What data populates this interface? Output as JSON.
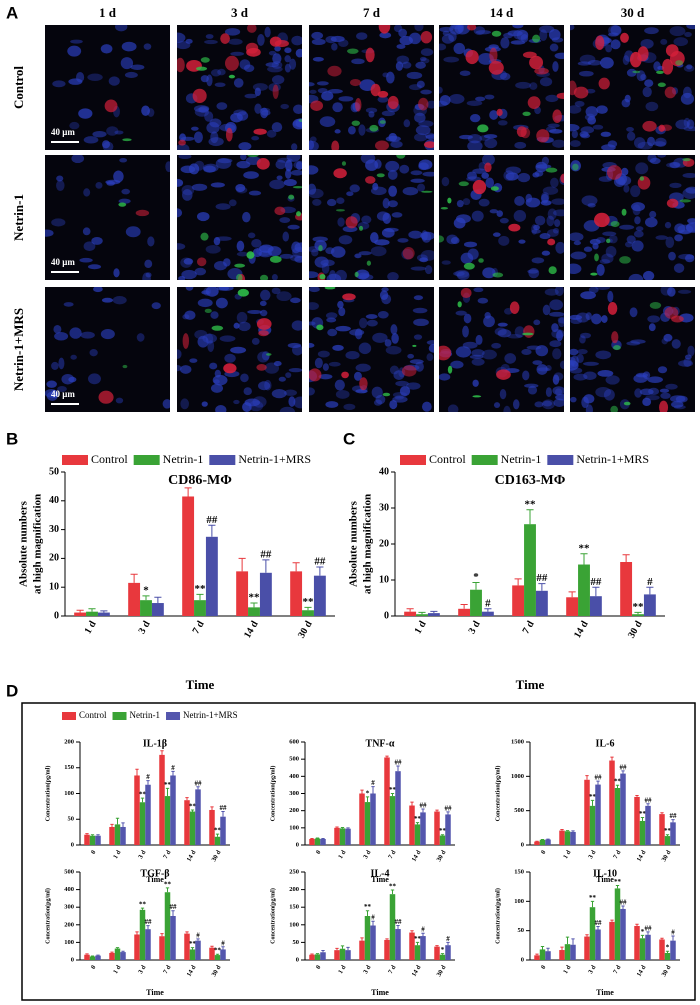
{
  "panel_a": {
    "label": "A",
    "columns": [
      "1 d",
      "3 d",
      "7 d",
      "14 d",
      "30 d"
    ],
    "rows": [
      "Control",
      "Netrin-1",
      "Netrin-1+MRS"
    ],
    "scale_bar": "40 μm"
  },
  "panel_d": "D",
  "chart_data": [
    {
      "type": "bar",
      "panel": "B",
      "title": "CD86-MΦ",
      "ylabel": [
        "Absolute numbers",
        "at high magnification"
      ],
      "xlabel": "Time",
      "categories": [
        "1 d",
        "3 d",
        "7 d",
        "14 d",
        "30 d"
      ],
      "ylim": [
        0,
        50
      ],
      "yticks": [
        0,
        10,
        20,
        30,
        40,
        50
      ],
      "series": [
        {
          "name": "Control",
          "color": "#e8383d",
          "values": [
            1.2,
            11.5,
            41.5,
            15.5,
            15.5
          ],
          "errors": [
            0.8,
            3,
            3,
            4.5,
            3
          ],
          "annotations": [
            null,
            null,
            null,
            null,
            null
          ]
        },
        {
          "name": "Netrin-1",
          "color": "#3aa335",
          "values": [
            1.5,
            5.5,
            5.5,
            3,
            2
          ],
          "errors": [
            1,
            1.5,
            2,
            1.5,
            1
          ],
          "annotations": [
            null,
            "*",
            "**",
            "**",
            "**"
          ]
        },
        {
          "name": "Netrin-1+MRS",
          "color": "#4a4fa8",
          "values": [
            1.2,
            4.5,
            27.5,
            15,
            14
          ],
          "errors": [
            0.6,
            2,
            4,
            4.5,
            3
          ],
          "annotations": [
            null,
            null,
            "##",
            "##",
            "##"
          ]
        }
      ]
    },
    {
      "type": "bar",
      "panel": "C",
      "title": "CD163-MΦ",
      "ylabel": [
        "Absolute numbers",
        "at high magnification"
      ],
      "xlabel": "Time",
      "categories": [
        "1 d",
        "3 d",
        "7 d",
        "14 d",
        "30 d"
      ],
      "ylim": [
        0,
        40
      ],
      "yticks": [
        0,
        10,
        20,
        30,
        40
      ],
      "series": [
        {
          "name": "Control",
          "color": "#e8383d",
          "values": [
            1.2,
            2,
            8.5,
            5.2,
            15
          ],
          "errors": [
            0.8,
            1.2,
            1.8,
            1.5,
            2
          ],
          "annotations": [
            null,
            null,
            null,
            null,
            null
          ]
        },
        {
          "name": "Netrin-1",
          "color": "#3aa335",
          "values": [
            0.5,
            7.3,
            25.5,
            14.3,
            0.5
          ],
          "errors": [
            0.5,
            2,
            4,
            3,
            0.5
          ],
          "annotations": [
            null,
            "*",
            "**",
            "**",
            "**"
          ]
        },
        {
          "name": "Netrin-1+MRS",
          "color": "#4a4fa8",
          "values": [
            0.8,
            1.2,
            7,
            5.5,
            6
          ],
          "errors": [
            0.5,
            0.8,
            2,
            2.5,
            2
          ],
          "annotations": [
            null,
            "#",
            "##",
            "##",
            "#"
          ]
        }
      ]
    },
    {
      "type": "bar",
      "title": "IL-1β",
      "ylabel": "Concentration(pg/ml)",
      "xlabel": "Time",
      "categories": [
        "0",
        "1 d",
        "3 d",
        "7 d",
        "14 d",
        "30 d"
      ],
      "ylim": [
        0,
        200
      ],
      "yticks": [
        0,
        50,
        100,
        150,
        200
      ],
      "series": [
        {
          "name": "Control",
          "color": "#e8383d",
          "values": [
            20,
            35,
            135,
            175,
            87,
            68
          ],
          "errors": [
            2,
            5,
            12,
            8,
            5,
            6
          ],
          "annotations": [
            null,
            null,
            null,
            null,
            null,
            null
          ]
        },
        {
          "name": "Netrin-1",
          "color": "#3aa335",
          "values": [
            18,
            40,
            83,
            95,
            65,
            16
          ],
          "errors": [
            2,
            12,
            8,
            15,
            3,
            5
          ],
          "annotations": [
            null,
            null,
            "**",
            "**",
            "**",
            "**"
          ]
        },
        {
          "name": "Netrin-1+MRS",
          "color": "#5456ad",
          "values": [
            18,
            35,
            117,
            135,
            108,
            55
          ],
          "errors": [
            2,
            8,
            8,
            8,
            5,
            10
          ],
          "annotations": [
            null,
            null,
            "#",
            "#",
            "##",
            "##"
          ]
        }
      ]
    },
    {
      "type": "bar",
      "title": "TNF-α",
      "ylabel": "Concentration(pg/ml)",
      "xlabel": "Time",
      "categories": [
        "0",
        "1 d",
        "3 d",
        "7 d",
        "14 d",
        "30 d"
      ],
      "ylim": [
        0,
        600
      ],
      "yticks": [
        0,
        100,
        200,
        300,
        400,
        500,
        600
      ],
      "series": [
        {
          "name": "Control",
          "color": "#e8383d",
          "values": [
            35,
            100,
            300,
            510,
            230,
            195
          ],
          "errors": [
            3,
            5,
            20,
            8,
            20,
            8
          ],
          "annotations": [
            null,
            null,
            null,
            null,
            null,
            null
          ]
        },
        {
          "name": "Netrin-1",
          "color": "#3aa335",
          "values": [
            38,
            97,
            250,
            285,
            120,
            55
          ],
          "errors": [
            3,
            5,
            30,
            15,
            10,
            5
          ],
          "annotations": [
            null,
            null,
            "*",
            "**",
            "**",
            "**"
          ]
        },
        {
          "name": "Netrin-1+MRS",
          "color": "#5456ad",
          "values": [
            35,
            95,
            300,
            430,
            190,
            178
          ],
          "errors": [
            3,
            5,
            40,
            30,
            20,
            15
          ],
          "annotations": [
            null,
            null,
            "#",
            "##",
            "##",
            "##"
          ]
        }
      ]
    },
    {
      "type": "bar",
      "title": "IL-6",
      "ylabel": "Concentration(pg/ml)",
      "xlabel": "Time",
      "categories": [
        "0",
        "1 d",
        "3 d",
        "7 d",
        "14 d",
        "30 d"
      ],
      "ylim": [
        0,
        1500
      ],
      "yticks": [
        0,
        500,
        1000,
        1500
      ],
      "series": [
        {
          "name": "Control",
          "color": "#e8383d",
          "values": [
            50,
            210,
            950,
            1230,
            700,
            450
          ],
          "errors": [
            5,
            15,
            60,
            50,
            20,
            20
          ],
          "annotations": [
            null,
            null,
            null,
            null,
            null,
            null
          ]
        },
        {
          "name": "Netrin-1",
          "color": "#3aa335",
          "values": [
            75,
            200,
            570,
            830,
            350,
            130
          ],
          "errors": [
            5,
            10,
            80,
            40,
            50,
            20
          ],
          "annotations": [
            null,
            null,
            "**",
            "**",
            "**",
            "**"
          ]
        },
        {
          "name": "Netrin-1+MRS",
          "color": "#5456ad",
          "values": [
            80,
            190,
            880,
            1040,
            570,
            330
          ],
          "errors": [
            5,
            15,
            50,
            40,
            30,
            40
          ],
          "annotations": [
            null,
            null,
            "##",
            "##",
            "##",
            "##"
          ]
        }
      ]
    },
    {
      "type": "bar",
      "title": "TGF-β",
      "ylabel": "Concentration(pg/ml)",
      "xlabel": "Time",
      "categories": [
        "0",
        "1 d",
        "3 d",
        "7 d",
        "14 d",
        "30 d"
      ],
      "ylim": [
        0,
        500
      ],
      "yticks": [
        0,
        100,
        200,
        300,
        400,
        500
      ],
      "series": [
        {
          "name": "Control",
          "color": "#e8383d",
          "values": [
            30,
            40,
            145,
            135,
            150,
            70
          ],
          "errors": [
            5,
            5,
            15,
            15,
            10,
            8
          ],
          "annotations": [
            null,
            null,
            null,
            null,
            null,
            null
          ]
        },
        {
          "name": "Netrin-1",
          "color": "#3aa335",
          "values": [
            20,
            65,
            285,
            385,
            60,
            28
          ],
          "errors": [
            3,
            5,
            10,
            25,
            10,
            5
          ],
          "annotations": [
            null,
            null,
            "**",
            "**",
            "**",
            "**"
          ]
        },
        {
          "name": "Netrin-1+MRS",
          "color": "#5456ad",
          "values": [
            25,
            45,
            175,
            250,
            110,
            60
          ],
          "errors": [
            3,
            5,
            20,
            30,
            10,
            15
          ],
          "annotations": [
            null,
            null,
            "##",
            "##",
            "#",
            "#"
          ]
        }
      ]
    },
    {
      "type": "bar",
      "title": "IL-4",
      "ylabel": "Concentration(pg/ml)",
      "xlabel": "Time",
      "categories": [
        "0",
        "1 d",
        "3 d",
        "7 d",
        "14 d",
        "30 d"
      ],
      "ylim": [
        0,
        250
      ],
      "yticks": [
        0,
        50,
        100,
        150,
        200,
        250
      ],
      "series": [
        {
          "name": "Control",
          "color": "#e8383d",
          "values": [
            15,
            28,
            55,
            57,
            78,
            38
          ],
          "errors": [
            2,
            5,
            8,
            3,
            5,
            3
          ],
          "annotations": [
            null,
            null,
            null,
            null,
            null,
            null
          ]
        },
        {
          "name": "Netrin-1",
          "color": "#3aa335",
          "values": [
            16,
            32,
            125,
            187,
            42,
            15
          ],
          "errors": [
            2,
            8,
            15,
            12,
            8,
            3
          ],
          "annotations": [
            null,
            null,
            "**",
            "**",
            "**",
            "*"
          ]
        },
        {
          "name": "Netrin-1+MRS",
          "color": "#5456ad",
          "values": [
            22,
            28,
            98,
            88,
            68,
            42
          ],
          "errors": [
            5,
            8,
            12,
            10,
            8,
            8
          ],
          "annotations": [
            null,
            null,
            "#",
            "##",
            "#",
            "#"
          ]
        }
      ]
    },
    {
      "type": "bar",
      "title": "IL-10",
      "ylabel": "Concentration(pg/ml)",
      "xlabel": "Time",
      "categories": [
        "0",
        "1 d",
        "3 d",
        "7 d",
        "14 d",
        "30 d"
      ],
      "ylim": [
        0,
        150
      ],
      "yticks": [
        0,
        50,
        100,
        150
      ],
      "series": [
        {
          "name": "Control",
          "color": "#e8383d",
          "values": [
            8,
            17,
            40,
            65,
            58,
            35
          ],
          "errors": [
            2,
            5,
            3,
            3,
            3,
            2
          ],
          "annotations": [
            null,
            null,
            null,
            null,
            null,
            null
          ]
        },
        {
          "name": "Netrin-1",
          "color": "#3aa335",
          "values": [
            18,
            27,
            90,
            122,
            37,
            12
          ],
          "errors": [
            5,
            12,
            10,
            5,
            5,
            3
          ],
          "annotations": [
            null,
            null,
            "**",
            "**",
            "*",
            "*"
          ]
        },
        {
          "name": "Netrin-1+MRS",
          "color": "#5456ad",
          "values": [
            15,
            26,
            52,
            87,
            43,
            33
          ],
          "errors": [
            5,
            10,
            5,
            5,
            5,
            8
          ],
          "annotations": [
            null,
            null,
            "##",
            "##",
            "##",
            "#"
          ]
        }
      ]
    }
  ]
}
